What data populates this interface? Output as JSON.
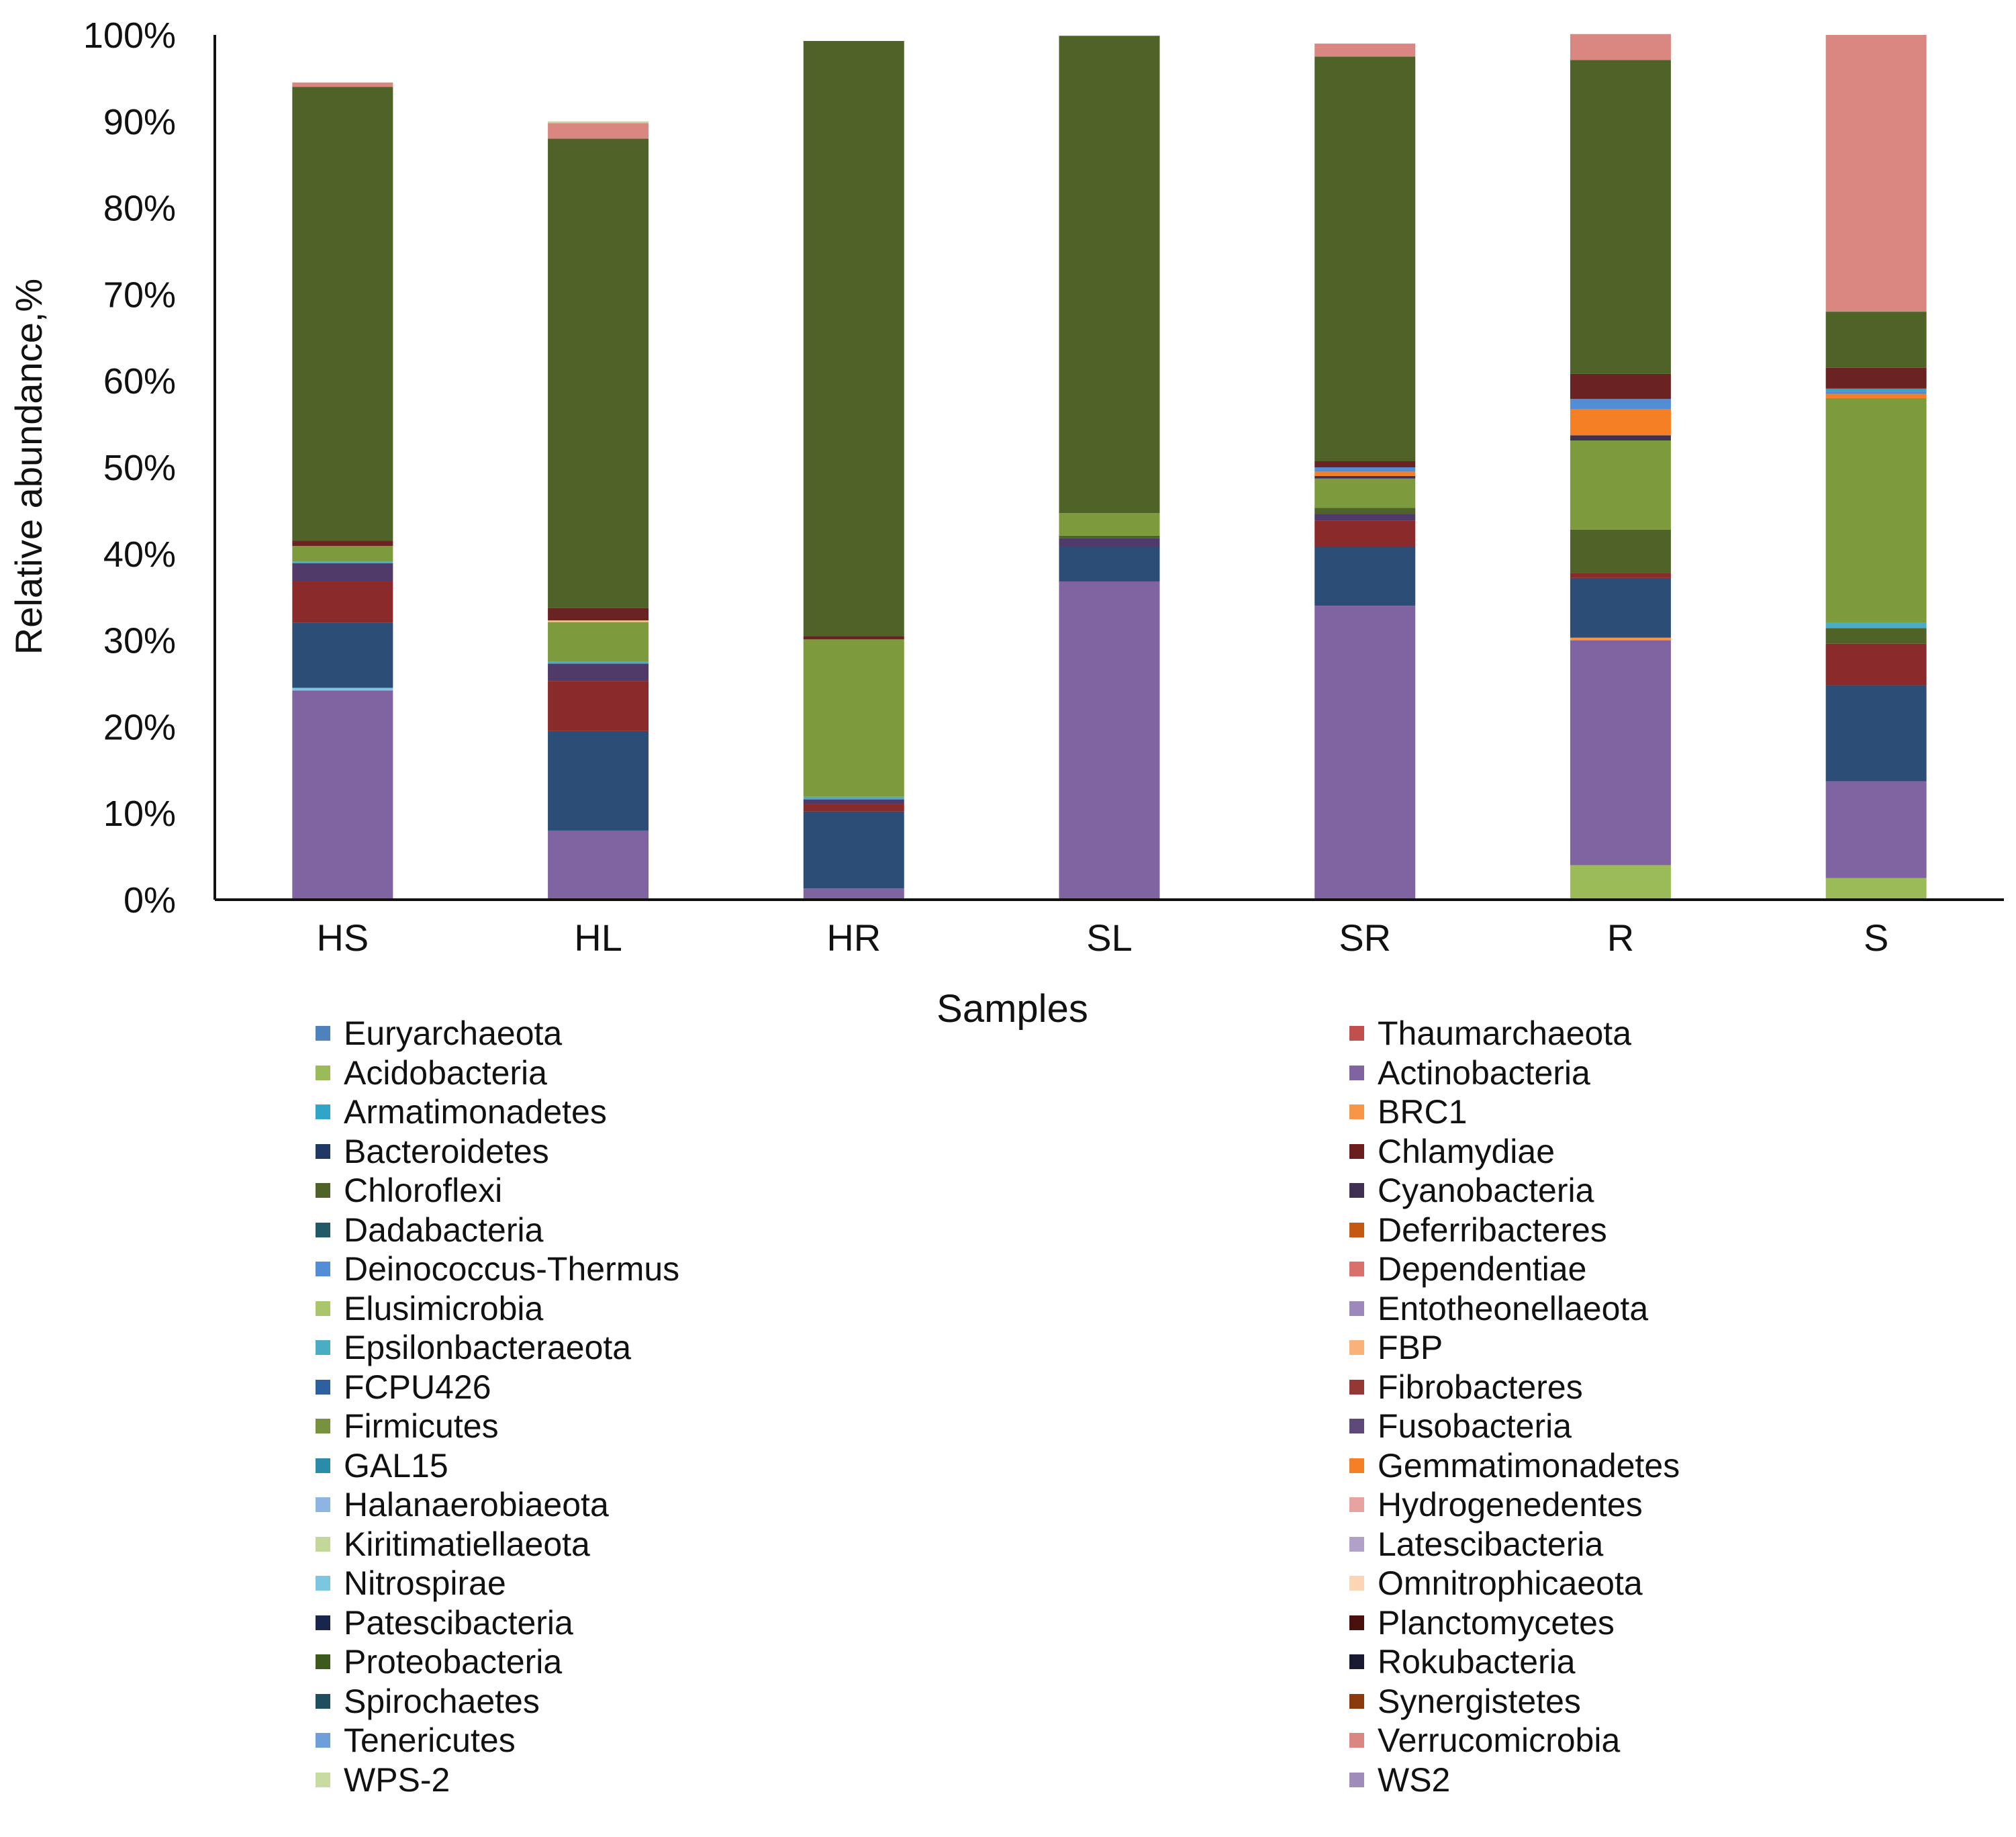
{
  "chart_data": {
    "type": "bar",
    "stacked": true,
    "xlabel": "Samples",
    "ylabel": "Relative abundance,%",
    "ylim": [
      0,
      100
    ],
    "yticks": [
      "0%",
      "10%",
      "20%",
      "30%",
      "40%",
      "50%",
      "60%",
      "70%",
      "80%",
      "90%",
      "100%"
    ],
    "grid": false,
    "legend_position": "bottom",
    "categories": [
      "HS",
      "HL",
      "HR",
      "SL",
      "SR",
      "R",
      "S"
    ],
    "series": [
      {
        "name": "Acidobacteria",
        "color": "#9bbb59",
        "values": [
          0,
          0,
          0,
          0,
          0,
          4.0,
          2.5
        ]
      },
      {
        "name": "Actinobacteria",
        "color": "#8064a2",
        "values": [
          24.2,
          8.0,
          1.3,
          36.8,
          34.0,
          26.0,
          11.2
        ]
      },
      {
        "name": "Nitrospirae",
        "color": "#7dc6e2",
        "values": [
          0.3,
          0,
          0,
          0,
          0,
          0,
          0
        ]
      },
      {
        "name": "BRC1",
        "color": "#f79646",
        "values": [
          0,
          0,
          0,
          0,
          0,
          0.3,
          0
        ]
      },
      {
        "name": "Bacteroidetes",
        "color": "#2c4d75",
        "values": [
          7.5,
          11.5,
          8.9,
          4.0,
          6.8,
          6.9,
          11.1
        ]
      },
      {
        "name": "Fibrobacteres",
        "color": "#8b2a2a",
        "values": [
          4.8,
          5.8,
          0.9,
          0,
          3.0,
          0.6,
          4.8
        ]
      },
      {
        "name": "Fusobacteria",
        "color": "#4f3a6a",
        "values": [
          2.1,
          2.0,
          0.5,
          1.0,
          0.8,
          0,
          0
        ]
      },
      {
        "name": "Chloroflexi",
        "color": "#4f6228",
        "values": [
          0,
          0,
          0,
          0.3,
          0.7,
          5.0,
          1.8
        ]
      },
      {
        "name": "Epsilonbacteraeota",
        "color": "#4bacc6",
        "values": [
          0.2,
          0.2,
          0.3,
          0,
          0,
          0,
          0.6
        ]
      },
      {
        "name": "Firmicutes",
        "color": "#7d9b3c",
        "values": [
          1.8,
          4.6,
          18.2,
          2.6,
          3.4,
          10.3,
          26.0
        ]
      },
      {
        "name": "Omnitrophicaeota",
        "color": "#fabf8f",
        "values": [
          0,
          0.2,
          0,
          0,
          0,
          0,
          0
        ]
      },
      {
        "name": "Cyanobacteria",
        "color": "#403152",
        "values": [
          0,
          0,
          0,
          0,
          0.3,
          0.6,
          0
        ]
      },
      {
        "name": "Gemmatimonadetes",
        "color": "#f57f25",
        "values": [
          0,
          0,
          0,
          0,
          0.5,
          3.0,
          0.5
        ]
      },
      {
        "name": "Deinococcus-Thermus",
        "color": "#538dd5",
        "values": [
          0,
          0,
          0,
          0,
          0.5,
          1.2,
          0.3
        ]
      },
      {
        "name": "Armatimonadetes",
        "color": "#31a5c8",
        "values": [
          0,
          0,
          0,
          0,
          0,
          0,
          0.3
        ]
      },
      {
        "name": "Chlamydiae",
        "color": "#6b2222",
        "values": [
          0.6,
          1.4,
          0.4,
          0,
          0.7,
          2.9,
          2.4
        ]
      },
      {
        "name": "Proteobacteria",
        "color": "#4f6228",
        "values": [
          52.5,
          54.3,
          68.8,
          55.2,
          46.8,
          36.3,
          6.5
        ]
      },
      {
        "name": "Verrucomicrobia",
        "color": "#da8782",
        "values": [
          0.5,
          1.8,
          0,
          0,
          1.5,
          3.0,
          32.0
        ]
      },
      {
        "name": "Kiritimatiellaeota",
        "color": "#c4d79b",
        "values": [
          0,
          0.2,
          0,
          0,
          0,
          0,
          0
        ]
      }
    ]
  },
  "legend": {
    "left": [
      {
        "name": "Euryarchaeota",
        "color": "#4f81bd"
      },
      {
        "name": "Acidobacteria",
        "color": "#9bbb59"
      },
      {
        "name": "Armatimonadetes",
        "color": "#31a5c8"
      },
      {
        "name": "Bacteroidetes",
        "color": "#1f3864"
      },
      {
        "name": "Chloroflexi",
        "color": "#4f6228"
      },
      {
        "name": "Dadabacteria",
        "color": "#215967"
      },
      {
        "name": "Deinococcus-Thermus",
        "color": "#538dd5"
      },
      {
        "name": "Elusimicrobia",
        "color": "#a9c66b"
      },
      {
        "name": "Epsilonbacteraeota",
        "color": "#4bacc6"
      },
      {
        "name": "FCPU426",
        "color": "#2e5f9e"
      },
      {
        "name": "Firmicutes",
        "color": "#76923c"
      },
      {
        "name": "GAL15",
        "color": "#2a8ca8"
      },
      {
        "name": "Halanaerobiaeota",
        "color": "#8db4e2"
      },
      {
        "name": "Kiritimatiellaeota",
        "color": "#c4d79b"
      },
      {
        "name": "Nitrospirae",
        "color": "#7dc6e2"
      },
      {
        "name": "Patescibacteria",
        "color": "#17264a"
      },
      {
        "name": "Proteobacteria",
        "color": "#3d5a1c"
      },
      {
        "name": "Spirochaetes",
        "color": "#1f4e5e"
      },
      {
        "name": "Tenericutes",
        "color": "#6f9fd8"
      },
      {
        "name": "WPS-2",
        "color": "#c8dba0"
      }
    ],
    "right": [
      {
        "name": "Thaumarchaeota",
        "color": "#c0504d"
      },
      {
        "name": "Actinobacteria",
        "color": "#8064a2"
      },
      {
        "name": "BRC1",
        "color": "#f79646"
      },
      {
        "name": "Chlamydiae",
        "color": "#6b1e1e"
      },
      {
        "name": "Cyanobacteria",
        "color": "#403152"
      },
      {
        "name": "Deferribacteres",
        "color": "#c65911"
      },
      {
        "name": "Dependentiae",
        "color": "#d9706b"
      },
      {
        "name": "Entotheonellaeota",
        "color": "#9d88bb"
      },
      {
        "name": "FBP",
        "color": "#fab27a"
      },
      {
        "name": "Fibrobacteres",
        "color": "#953735"
      },
      {
        "name": "Fusobacteria",
        "color": "#5f497a"
      },
      {
        "name": "Gemmatimonadetes",
        "color": "#f57f25"
      },
      {
        "name": "Hydrogenedentes",
        "color": "#e6a3a0"
      },
      {
        "name": "Latescibacteria",
        "color": "#b1a0c7"
      },
      {
        "name": "Omnitrophicaeota",
        "color": "#fcd5b4"
      },
      {
        "name": "Planctomycetes",
        "color": "#4a1010"
      },
      {
        "name": "Rokubacteria",
        "color": "#1b1a33"
      },
      {
        "name": "Synergistetes",
        "color": "#8b3a0f"
      },
      {
        "name": "Verrucomicrobia",
        "color": "#da8782"
      },
      {
        "name": "WS2",
        "color": "#a08cba"
      }
    ]
  }
}
